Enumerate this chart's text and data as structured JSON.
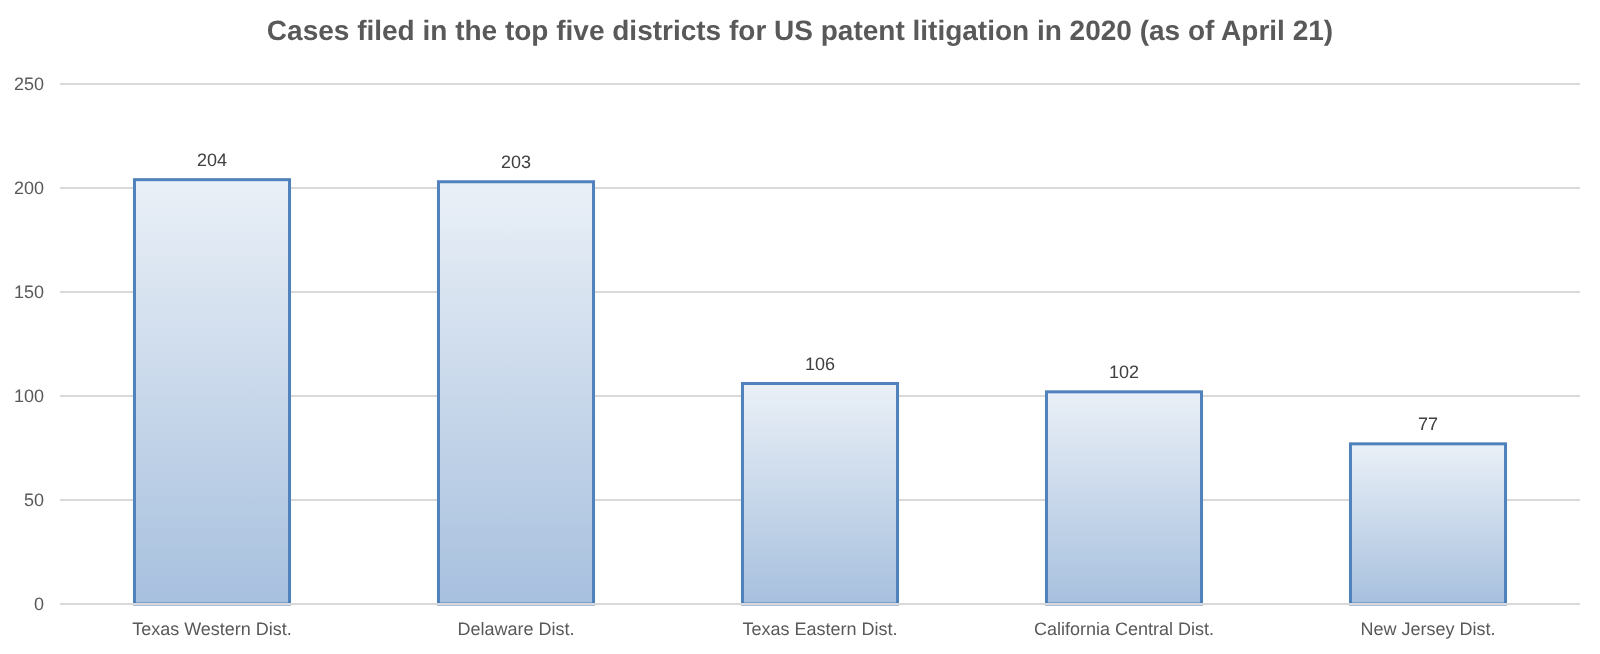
{
  "chart_data": {
    "type": "bar",
    "title": "Cases filed in the top five districts for US patent litigation in 2020 (as of April 21)",
    "categories": [
      "Texas Western Dist.",
      "Delaware Dist.",
      "Texas Eastern Dist.",
      "California Central Dist.",
      "New Jersey Dist."
    ],
    "values": [
      204,
      203,
      106,
      102,
      77
    ],
    "color": "#4f81bd",
    "ylim": [
      0,
      250
    ],
    "yticks": [
      0,
      50,
      100,
      150,
      200,
      250
    ],
    "grid": "y",
    "data_labels": true
  }
}
